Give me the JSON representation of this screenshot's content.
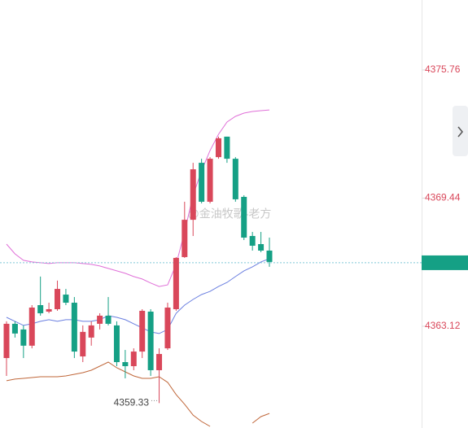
{
  "chart_data": {
    "type": "candlestick",
    "ylim": [
      4358.1,
      4379.21
    ],
    "yticks": [
      4375.76,
      4369.44,
      4363.12
    ],
    "up_color": "#d9475a",
    "down_color": "#15a085",
    "open": [
      4361.55,
      4363.24,
      4362.96,
      4362.16,
      4364.16,
      4363.84,
      4363.96,
      4364.68,
      4364.28,
      4361.63,
      4362.56,
      4363.24,
      4363.64,
      4363.16,
      4361.35,
      4361.15,
      4361.87,
      4363.84,
      4360.95,
      4362.03,
      4363.96,
      4366.53,
      4368.37,
      4371.18,
      4369.26,
      4371.46,
      4372.47,
      4371.38,
      4369.5,
      4367.57,
      4367.17,
      4366.85
    ],
    "high": [
      4363.36,
      4363.36,
      4363.16,
      4364.16,
      4365.57,
      4364.28,
      4365.37,
      4364.96,
      4364.56,
      4363.16,
      4363.36,
      4363.76,
      4364.56,
      4363.36,
      4361.95,
      4362.03,
      4363.96,
      4363.96,
      4362.03,
      4364.28,
      4366.53,
      4369.26,
      4371.18,
      4371.38,
      4371.46,
      4372.47,
      4372.47,
      4371.46,
      4369.58,
      4367.77,
      4367.77,
      4367.49
    ],
    "low": [
      4360.67,
      4362.56,
      4361.55,
      4362.03,
      4363.64,
      4363.76,
      4363.88,
      4364.16,
      4361.55,
      4361.35,
      4362.16,
      4362.96,
      4363.16,
      4361.15,
      4360.55,
      4360.95,
      4361.55,
      4360.67,
      4359.33,
      4361.95,
      4363.88,
      4366.49,
      4367.57,
      4369.18,
      4369.18,
      4371.38,
      4371.18,
      4369.26,
      4367.37,
      4366.85,
      4366.77,
      4366.05
    ],
    "close": [
      4363.24,
      4362.76,
      4362.16,
      4364.04,
      4363.76,
      4363.96,
      4364.96,
      4364.28,
      4361.87,
      4362.84,
      4363.16,
      4363.64,
      4363.24,
      4361.35,
      4361.15,
      4361.87,
      4363.88,
      4360.95,
      4361.75,
      4364.04,
      4366.49,
      4368.37,
      4370.86,
      4369.26,
      4371.38,
      4372.39,
      4371.38,
      4369.38,
      4367.49,
      4367.09,
      4366.85,
      4366.29
    ],
    "series": [
      {
        "color": "#e070d8",
        "values": [
          4367.17,
          4366.69,
          4366.37,
          4366.29,
          4366.25,
          4366.21,
          4366.25,
          4366.25,
          4366.25,
          4366.21,
          4366.17,
          4366.09,
          4365.97,
          4365.85,
          4365.73,
          4365.57,
          4365.45,
          4365.25,
          4365.08,
          4365.16,
          4366.17,
          4367.77,
          4369.58,
          4370.78,
          4371.79,
          4372.59,
          4373.19,
          4373.47,
          4373.63,
          4373.71,
          4373.75,
          4373.79
        ]
      },
      {
        "color": "#6a7fe0",
        "values": [
          4363.56,
          4363.36,
          4363.16,
          4363.24,
          4363.36,
          4363.44,
          4363.36,
          4363.44,
          4363.44,
          4363.36,
          4363.36,
          4363.44,
          4363.64,
          4363.56,
          4363.44,
          4363.24,
          4363.04,
          4362.84,
          4362.76,
          4362.96,
          4363.76,
          4364.16,
          4364.44,
          4364.68,
          4364.84,
          4365.08,
          4365.28,
          4365.57,
          4365.85,
          4366.05,
          4366.29,
          4366.45
        ]
      },
      {
        "color": "#c0673a",
        "values": [
          4360.43,
          4360.51,
          4360.55,
          4360.59,
          4360.63,
          4360.63,
          4360.63,
          4360.67,
          4360.75,
          4360.83,
          4360.95,
          4361.15,
          4361.35,
          4361.07,
          4360.87,
          4360.67,
          4360.55,
          4360.55,
          4360.63,
          4360.35,
          4359.75,
          4359.27,
          4358.74,
          4358.42,
          4358.18,
          null,
          null,
          null,
          null,
          4358.34,
          4358.66,
          4358.82
        ]
      }
    ],
    "price_line": 4366.25,
    "low_annotation": {
      "value": 4359.33,
      "label": "4359.33"
    },
    "watermark": "@金油牧歌-老方"
  }
}
